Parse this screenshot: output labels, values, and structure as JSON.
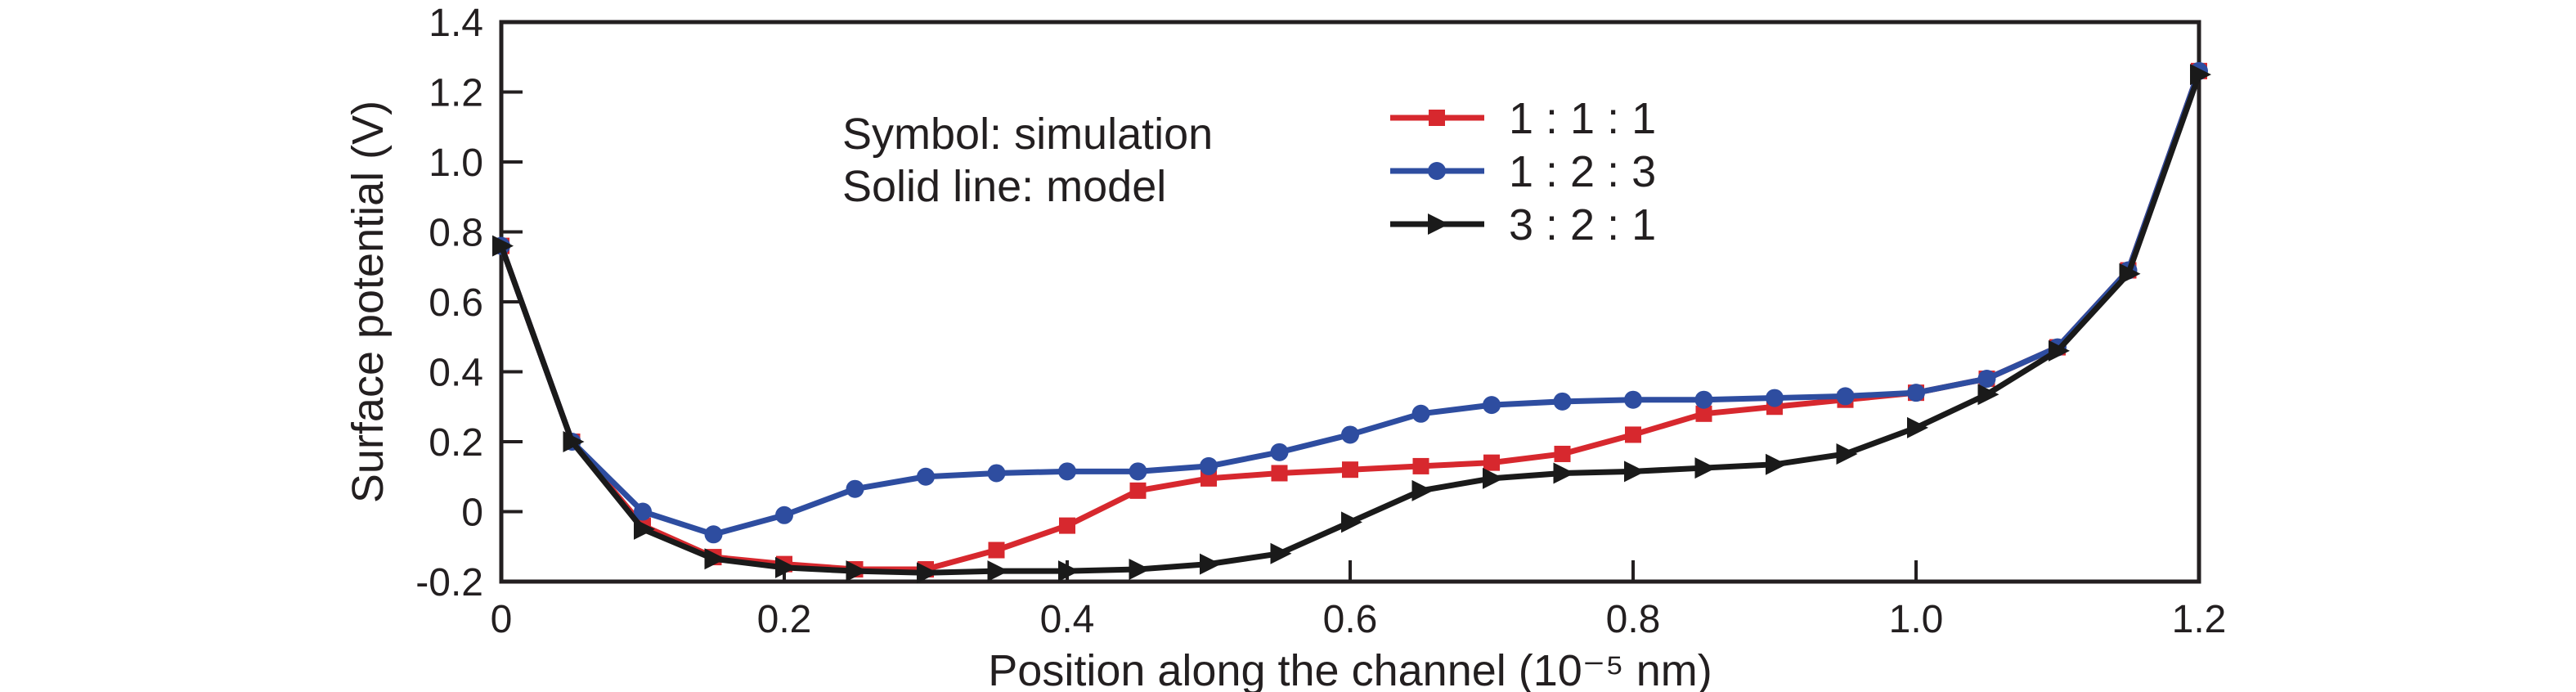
{
  "figure": {
    "background": "#ffffff",
    "frame_color": "#231f20"
  },
  "annotation": {
    "line1": "Symbol: simulation",
    "line2": "Solid line: model"
  },
  "chart_data": {
    "type": "line",
    "title": "",
    "xlabel": "Position along the channel (10⁻⁵ nm)",
    "ylabel": "Surface potential (V)",
    "xlim": [
      0,
      1.2
    ],
    "ylim": [
      -0.2,
      1.4
    ],
    "grid": false,
    "legend_position": "upper-right-inside",
    "xticks": [
      0,
      0.2,
      0.4,
      0.6,
      0.8,
      1.0,
      1.2
    ],
    "xtick_labels": [
      "0",
      "0.2",
      "0.4",
      "0.6",
      "0.8",
      "1.0",
      "1.2"
    ],
    "yticks": [
      -0.2,
      0,
      0.2,
      0.4,
      0.6,
      0.8,
      1.0,
      1.2,
      1.4
    ],
    "ytick_labels": [
      "-0.2",
      "0",
      "0.2",
      "0.4",
      "0.6",
      "0.8",
      "1.0",
      "1.2",
      "1.4"
    ],
    "annotation_lines": [
      "Symbol: simulation",
      "Solid line: model"
    ],
    "x": [
      0,
      0.05,
      0.1,
      0.15,
      0.2,
      0.25,
      0.3,
      0.35,
      0.4,
      0.45,
      0.5,
      0.55,
      0.6,
      0.65,
      0.7,
      0.75,
      0.8,
      0.85,
      0.9,
      0.95,
      1.0,
      1.05,
      1.1,
      1.15,
      1.2
    ],
    "series": [
      {
        "name": "1 : 1 : 1",
        "color": "#d7282e",
        "marker": "square",
        "values": [
          0.76,
          0.2,
          -0.04,
          -0.13,
          -0.15,
          -0.165,
          -0.165,
          -0.11,
          -0.04,
          0.06,
          0.095,
          0.11,
          0.12,
          0.13,
          0.14,
          0.165,
          0.22,
          0.28,
          0.3,
          0.32,
          0.34,
          0.38,
          0.47,
          0.69,
          1.26
        ]
      },
      {
        "name": "1 : 2 : 3",
        "color": "#2e4da0",
        "marker": "circle",
        "values": [
          0.76,
          0.2,
          0.0,
          -0.065,
          -0.01,
          0.065,
          0.1,
          0.11,
          0.115,
          0.115,
          0.13,
          0.17,
          0.22,
          0.28,
          0.305,
          0.315,
          0.32,
          0.32,
          0.325,
          0.33,
          0.34,
          0.38,
          0.47,
          0.69,
          1.26
        ]
      },
      {
        "name": "3 : 2 : 1",
        "color": "#1a1a1a",
        "marker": "triangle-right",
        "values": [
          0.76,
          0.2,
          -0.05,
          -0.135,
          -0.16,
          -0.17,
          -0.175,
          -0.17,
          -0.17,
          -0.165,
          -0.15,
          -0.12,
          -0.03,
          0.06,
          0.095,
          0.11,
          0.115,
          0.125,
          0.135,
          0.165,
          0.24,
          0.335,
          0.46,
          0.68,
          1.25
        ]
      }
    ]
  }
}
